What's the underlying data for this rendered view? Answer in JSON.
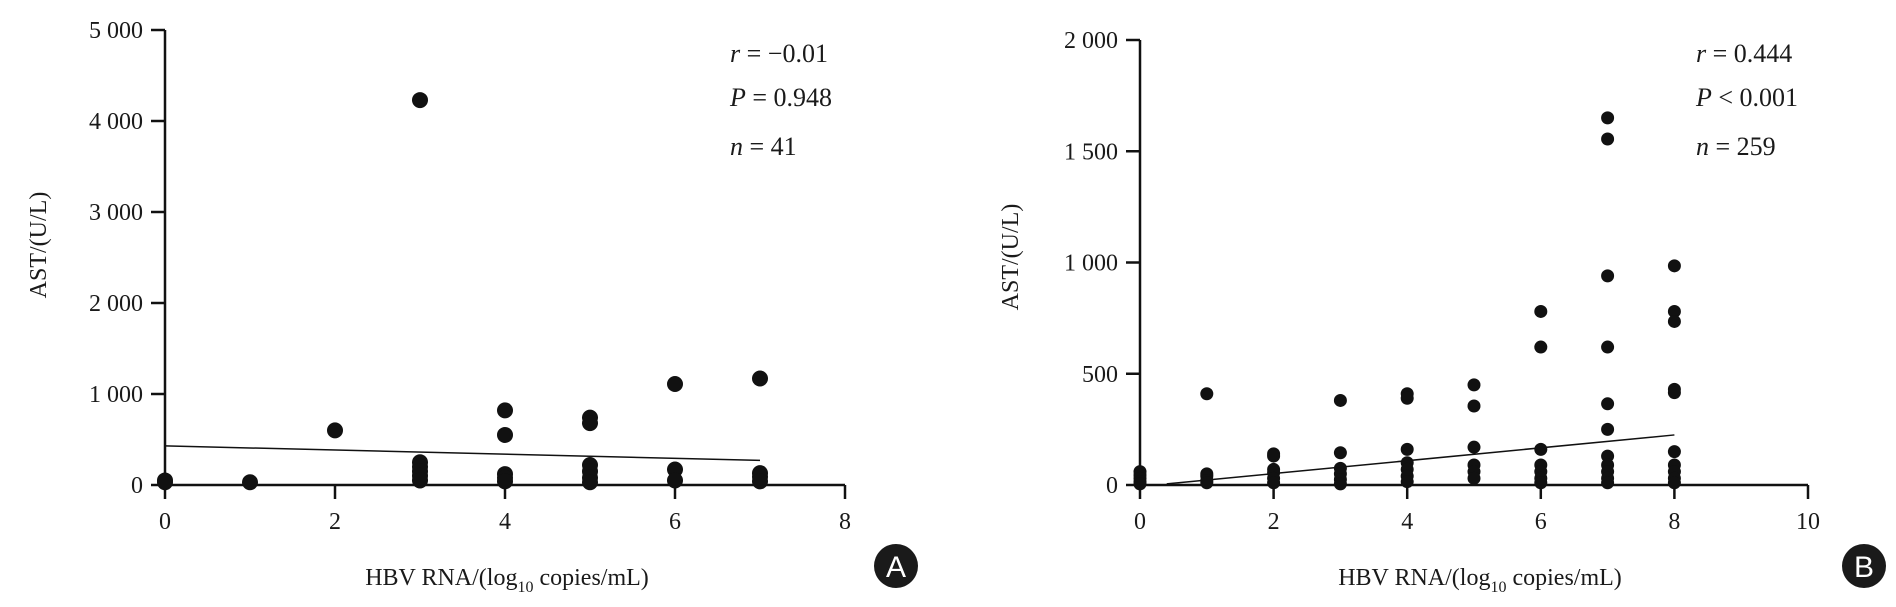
{
  "colors": {
    "ink": "#111111",
    "badge": "#1a1a1a"
  },
  "chart_data": [
    {
      "type": "scatter",
      "panel": "A",
      "xlabel": "HBV RNA/(log10 copies/mL)",
      "ylabel": "AST/(U/L)",
      "xlim": [
        0,
        8
      ],
      "ylim": [
        0,
        5000
      ],
      "x_ticks": [
        0,
        2,
        4,
        6,
        8
      ],
      "x_tick_labels": [
        "0",
        "2",
        "4",
        "6",
        "8"
      ],
      "y_ticks": [
        0,
        1000,
        2000,
        3000,
        4000,
        5000
      ],
      "y_tick_labels": [
        "0",
        "1 000",
        "2 000",
        "3 000",
        "4 000",
        "5 000"
      ],
      "stats": {
        "r": "= −0.01",
        "p": "= 0.948",
        "n": "= 41"
      },
      "points": [
        [
          0,
          30
        ],
        [
          0,
          50
        ],
        [
          1,
          30
        ],
        [
          2,
          600
        ],
        [
          3,
          4230
        ],
        [
          3,
          250
        ],
        [
          3,
          200
        ],
        [
          3,
          150
        ],
        [
          3,
          100
        ],
        [
          3,
          50
        ],
        [
          4,
          820
        ],
        [
          4,
          550
        ],
        [
          4,
          120
        ],
        [
          4,
          80
        ],
        [
          4,
          40
        ],
        [
          5,
          740
        ],
        [
          5,
          680
        ],
        [
          5,
          220
        ],
        [
          5,
          150
        ],
        [
          5,
          80
        ],
        [
          5,
          30
        ],
        [
          6,
          1110
        ],
        [
          6,
          170
        ],
        [
          6,
          50
        ],
        [
          7,
          1170
        ],
        [
          7,
          130
        ],
        [
          7,
          90
        ],
        [
          7,
          40
        ]
      ],
      "fit_line": [
        [
          0,
          430
        ],
        [
          7,
          270
        ]
      ]
    },
    {
      "type": "scatter",
      "panel": "B",
      "xlabel": "HBV RNA/(log10 copies/mL)",
      "ylabel": "AST/(U/L)",
      "xlim": [
        0,
        10
      ],
      "ylim": [
        0,
        2000
      ],
      "x_ticks": [
        0,
        2,
        4,
        6,
        8,
        10
      ],
      "x_tick_labels": [
        "0",
        "2",
        "4",
        "6",
        "8",
        "10"
      ],
      "y_ticks": [
        0,
        500,
        1000,
        1500,
        2000
      ],
      "y_tick_labels": [
        "0",
        "500",
        "1 000",
        "1 500",
        "2 000"
      ],
      "stats": {
        "r": "= 0.444",
        "p": "< 0.001",
        "n": "= 259"
      },
      "points": [
        [
          0,
          60
        ],
        [
          0,
          45
        ],
        [
          0,
          30
        ],
        [
          0,
          15
        ],
        [
          0,
          5
        ],
        [
          1,
          410
        ],
        [
          1,
          50
        ],
        [
          1,
          40
        ],
        [
          1,
          20
        ],
        [
          1,
          10
        ],
        [
          2,
          140
        ],
        [
          2,
          130
        ],
        [
          2,
          70
        ],
        [
          2,
          55
        ],
        [
          2,
          30
        ],
        [
          2,
          10
        ],
        [
          3,
          380
        ],
        [
          3,
          145
        ],
        [
          3,
          75
        ],
        [
          3,
          50
        ],
        [
          3,
          25
        ],
        [
          3,
          5
        ],
        [
          4,
          410
        ],
        [
          4,
          390
        ],
        [
          4,
          160
        ],
        [
          4,
          100
        ],
        [
          4,
          70
        ],
        [
          4,
          40
        ],
        [
          4,
          15
        ],
        [
          5,
          450
        ],
        [
          5,
          355
        ],
        [
          5,
          170
        ],
        [
          5,
          90
        ],
        [
          5,
          60
        ],
        [
          5,
          30
        ],
        [
          6,
          780
        ],
        [
          6,
          620
        ],
        [
          6,
          160
        ],
        [
          6,
          90
        ],
        [
          6,
          60
        ],
        [
          6,
          30
        ],
        [
          6,
          10
        ],
        [
          7,
          1650
        ],
        [
          7,
          1555
        ],
        [
          7,
          940
        ],
        [
          7,
          620
        ],
        [
          7,
          365
        ],
        [
          7,
          250
        ],
        [
          7,
          130
        ],
        [
          7,
          90
        ],
        [
          7,
          60
        ],
        [
          7,
          30
        ],
        [
          7,
          10
        ],
        [
          8,
          985
        ],
        [
          8,
          780
        ],
        [
          8,
          735
        ],
        [
          8,
          430
        ],
        [
          8,
          415
        ],
        [
          8,
          150
        ],
        [
          8,
          90
        ],
        [
          8,
          60
        ],
        [
          8,
          30
        ],
        [
          8,
          10
        ]
      ],
      "fit_line": [
        [
          0.4,
          5
        ],
        [
          8,
          225
        ]
      ]
    }
  ]
}
